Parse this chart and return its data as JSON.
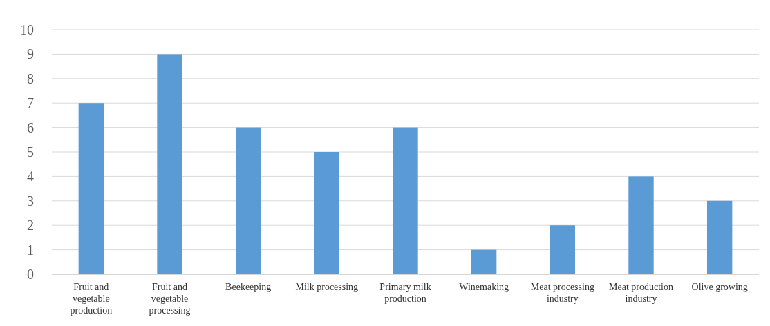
{
  "chart_data": {
    "type": "bar",
    "categories": [
      "Fruit and vegetable production",
      "Fruit and vegetable processing",
      "Beekeeping",
      "Milk processing",
      "Primary milk production",
      "Winemaking",
      "Meat processing industry",
      "Meat production industry",
      "Olive growing"
    ],
    "values": [
      7,
      9,
      6,
      5,
      6,
      1,
      2,
      4,
      3
    ],
    "color": "#5b9bd5",
    "ylim": [
      0,
      10
    ],
    "yticks": [
      0,
      1,
      2,
      3,
      4,
      5,
      6,
      7,
      8,
      9,
      10
    ],
    "grid": "y"
  }
}
